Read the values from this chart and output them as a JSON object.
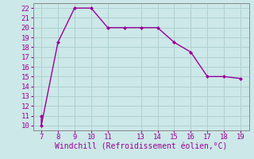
{
  "x": [
    7,
    7,
    8,
    9,
    10,
    11,
    12,
    13,
    14,
    15,
    16,
    17,
    18,
    19
  ],
  "y": [
    11,
    10,
    18.5,
    22,
    22,
    20,
    20,
    20,
    20,
    18.5,
    17.5,
    15,
    15,
    14.8
  ],
  "line_color": "#990099",
  "marker": "D",
  "marker_size": 2,
  "xlabel": "Windchill (Refroidissement éolien,°C)",
  "xlabel_fontsize": 7,
  "xlim": [
    6.5,
    19.5
  ],
  "ylim": [
    9.5,
    22.5
  ],
  "yticks": [
    10,
    11,
    12,
    13,
    14,
    15,
    16,
    17,
    18,
    19,
    20,
    21,
    22
  ],
  "xticks": [
    7,
    8,
    9,
    10,
    11,
    13,
    14,
    15,
    16,
    17,
    18,
    19
  ],
  "tick_fontsize": 6.5,
  "bg_color": "#cce8e8",
  "grid_color": "#b0d0d0",
  "line_width": 1.0,
  "spine_color": "#888888"
}
